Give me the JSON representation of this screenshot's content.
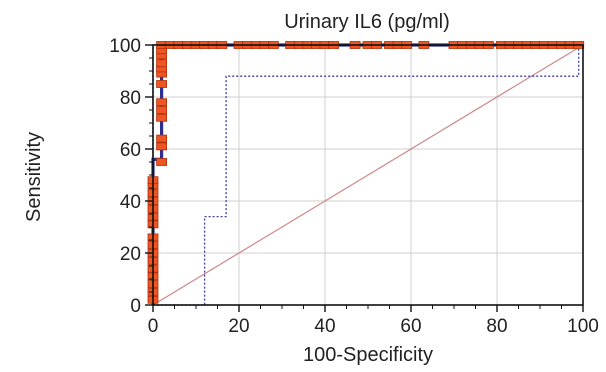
{
  "chart_data": {
    "type": "line",
    "title": "Urinary IL6 (pg/ml)",
    "xlabel": "100-Specificity",
    "ylabel": "Sensitivity",
    "xlim": [
      0,
      100
    ],
    "ylim": [
      0,
      100
    ],
    "xticks": [
      0,
      20,
      40,
      60,
      80,
      100
    ],
    "yticks": [
      0,
      20,
      40,
      60,
      80,
      100
    ],
    "grid": true,
    "series": [
      {
        "role": "roc",
        "color": "#2b2f8f",
        "points": [
          [
            0,
            0
          ],
          [
            0,
            56
          ],
          [
            2,
            56
          ],
          [
            2,
            100
          ],
          [
            100,
            100
          ]
        ]
      },
      {
        "role": "confidence-upper",
        "color": "#2b2f8f",
        "points": [
          [
            0,
            0
          ],
          [
            0,
            100
          ],
          [
            100,
            100
          ]
        ]
      },
      {
        "role": "confidence-lower",
        "color": "#3a3fa8",
        "points": [
          [
            0,
            0
          ],
          [
            12,
            0
          ],
          [
            12,
            34
          ],
          [
            17,
            34
          ],
          [
            17,
            88
          ],
          [
            99,
            88
          ],
          [
            99,
            100
          ]
        ]
      },
      {
        "role": "reference-diagonal",
        "color": "#cc8888",
        "points": [
          [
            0,
            0
          ],
          [
            100,
            100
          ]
        ]
      }
    ],
    "markers": {
      "color": "#ee5522",
      "edge_color": "#b0300a",
      "points": [
        [
          0,
          2
        ],
        [
          0,
          5
        ],
        [
          0,
          8
        ],
        [
          0,
          11
        ],
        [
          0,
          14
        ],
        [
          0,
          17
        ],
        [
          0,
          20
        ],
        [
          0,
          23
        ],
        [
          0,
          26
        ],
        [
          0,
          31
        ],
        [
          0,
          34
        ],
        [
          0,
          37
        ],
        [
          0,
          40
        ],
        [
          0,
          43
        ],
        [
          0,
          46
        ],
        [
          0,
          48
        ],
        [
          2,
          55
        ],
        [
          2,
          61
        ],
        [
          2,
          64
        ],
        [
          2,
          72
        ],
        [
          2,
          75
        ],
        [
          2,
          78
        ],
        [
          2,
          85
        ],
        [
          2,
          89
        ],
        [
          2,
          91
        ],
        [
          2,
          93
        ],
        [
          2,
          96
        ],
        [
          2,
          98
        ],
        [
          2,
          100
        ],
        [
          4,
          100
        ],
        [
          6,
          100
        ],
        [
          8,
          100
        ],
        [
          10,
          100
        ],
        [
          12,
          100
        ],
        [
          14,
          100
        ],
        [
          16,
          100
        ],
        [
          20,
          100
        ],
        [
          22,
          100
        ],
        [
          24,
          100
        ],
        [
          26,
          100
        ],
        [
          28,
          100
        ],
        [
          32,
          100
        ],
        [
          34,
          100
        ],
        [
          36,
          100
        ],
        [
          38,
          100
        ],
        [
          40,
          100
        ],
        [
          42,
          100
        ],
        [
          47,
          100
        ],
        [
          50,
          100
        ],
        [
          52,
          100
        ],
        [
          55,
          100
        ],
        [
          57,
          100
        ],
        [
          59,
          100
        ],
        [
          63,
          100
        ],
        [
          70,
          100
        ],
        [
          72,
          100
        ],
        [
          74,
          100
        ],
        [
          76,
          100
        ],
        [
          78,
          100
        ],
        [
          81,
          100
        ],
        [
          83,
          100
        ],
        [
          85,
          100
        ],
        [
          87,
          100
        ],
        [
          89,
          100
        ],
        [
          91,
          100
        ],
        [
          93,
          100
        ],
        [
          95,
          100
        ],
        [
          97,
          100
        ],
        [
          99,
          100
        ]
      ]
    }
  }
}
